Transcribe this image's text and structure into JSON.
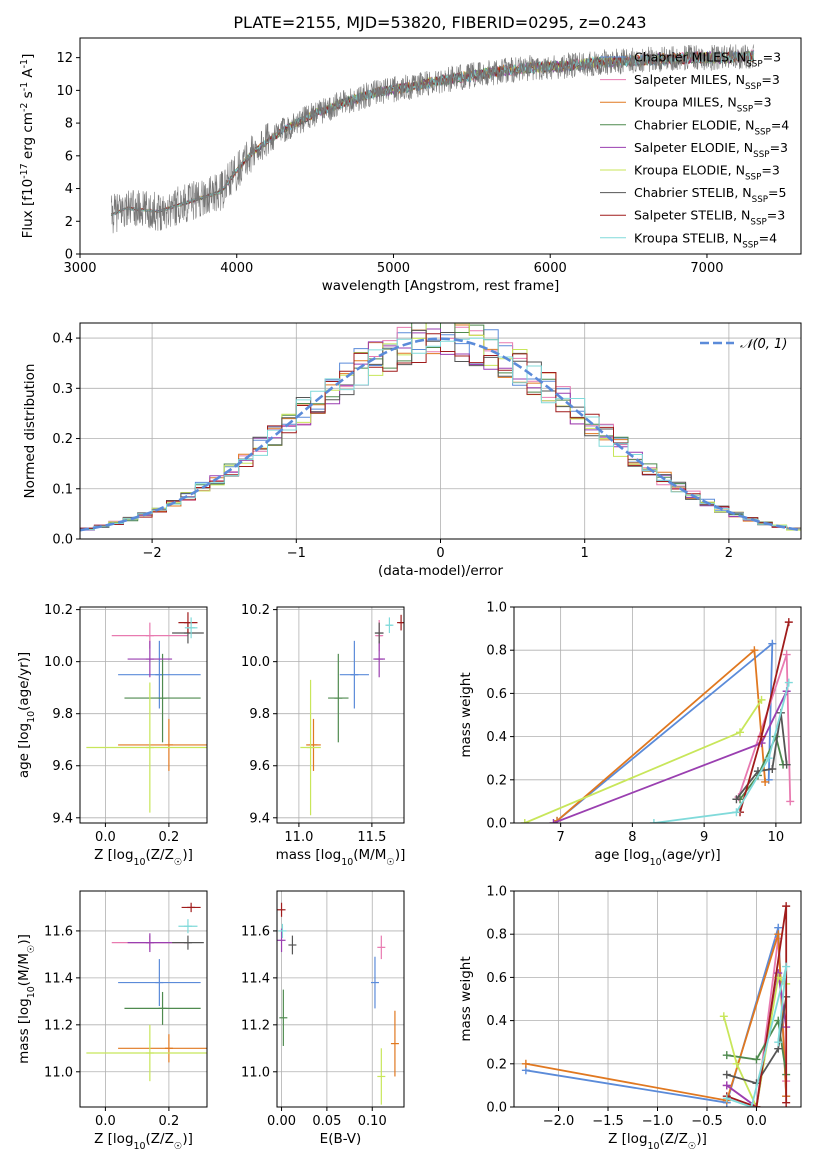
{
  "figure_title": "PLATE=2155, MJD=53820, FIBERID=0295, z=0.243",
  "colors": {
    "chabrier_miles": "#5b8bd9",
    "salpeter_miles": "#e87ab0",
    "kroupa_miles": "#e07820",
    "chabrier_elodie": "#4f8a4f",
    "salpeter_elodie": "#9a3fb0",
    "kroupa_elodie": "#c8e65a",
    "chabrier_stelib": "#555555",
    "salpeter_stelib": "#a01c1c",
    "kroupa_stelib": "#80dada",
    "gaussian": "#5b8bd9",
    "data_gray": "#777777"
  },
  "chart_data": [
    {
      "id": "spectrum",
      "type": "line",
      "xlabel": "wavelength [Angstrom, rest frame]",
      "ylabel": "Flux [f$_\\lambda$10$^{-17}$ erg cm$^{-2}$ s$^{-1}$ A$^{-1}$]",
      "xlim": [
        3000,
        7600
      ],
      "ylim": [
        0,
        13.2
      ],
      "xticks": [
        "3000",
        "4000",
        "5000",
        "6000",
        "7000"
      ],
      "yticks": [
        "0",
        "2",
        "4",
        "6",
        "8",
        "10",
        "12"
      ],
      "continuum": {
        "x": [
          3200,
          3300,
          3500,
          3700,
          3900,
          4000,
          4100,
          4300,
          4500,
          4700,
          4900,
          5100,
          5300,
          5500,
          5700,
          5900,
          6100,
          6300,
          6500,
          6700,
          6900,
          7100,
          7300
        ],
        "y": [
          2.4,
          2.8,
          2.6,
          3.2,
          3.8,
          5.1,
          6.2,
          7.6,
          8.6,
          9.3,
          9.9,
          10.2,
          10.6,
          10.9,
          11.2,
          11.4,
          11.5,
          11.7,
          11.8,
          11.9,
          12.0,
          12.0,
          12.1
        ]
      },
      "legend": [
        "Chabrier MILES, N$_{SSP}$=3",
        "Salpeter MILES, N$_{SSP}$=3",
        "Kroupa MILES, N$_{SSP}$=3",
        "Chabrier ELODIE, N$_{SSP}$=4",
        "Salpeter ELODIE, N$_{SSP}$=3",
        "Kroupa ELODIE, N$_{SSP}$=3",
        "Chabrier STELIB, N$_{SSP}$=5",
        "Salpeter STELIB, N$_{SSP}$=3",
        "Kroupa STELIB, N$_{SSP}$=4"
      ],
      "legend_placement": "upper right",
      "grid": false
    },
    {
      "id": "residuals",
      "type": "histogram",
      "xlabel": "(data-model)/error",
      "ylabel": "Normed distribution",
      "xlim": [
        -2.5,
        2.5
      ],
      "ylim": [
        0,
        0.43
      ],
      "xticks": [
        "−2",
        "−1",
        "0",
        "1",
        "2"
      ],
      "yticks": [
        "0.0",
        "0.1",
        "0.2",
        "0.3",
        "0.4"
      ],
      "legend": [
        "$\\mathcal{N}(0,1)$"
      ],
      "legend_placement": "upper right",
      "bin_width": 0.1,
      "grid": true
    },
    {
      "id": "age_vs_Z",
      "type": "errorbar",
      "xlabel": "Z [log$_{10}$(Z/Z$_\\odot$)]",
      "ylabel": "age  [log$_{10}$(age/yr)]",
      "xlim": [
        -0.08,
        0.32
      ],
      "ylim": [
        9.38,
        10.21
      ],
      "xticks": [
        "0.0",
        "0.2"
      ],
      "yticks": [
        "9.4",
        "9.6",
        "9.8",
        "10.0",
        "10.2"
      ],
      "points": [
        {
          "model": "chabrier_miles",
          "x": 0.17,
          "y": 9.95,
          "xerr": 0.13,
          "yerr": 0.13
        },
        {
          "model": "salpeter_miles",
          "x": 0.14,
          "y": 10.1,
          "xerr": 0.12,
          "yerr": 0.05
        },
        {
          "model": "kroupa_miles",
          "x": 0.2,
          "y": 9.68,
          "xerr": 0.16,
          "yerr": 0.1
        },
        {
          "model": "chabrier_elodie",
          "x": 0.18,
          "y": 9.86,
          "xerr": 0.12,
          "yerr": 0.17
        },
        {
          "model": "salpeter_elodie",
          "x": 0.14,
          "y": 10.01,
          "xerr": 0.07,
          "yerr": 0.07
        },
        {
          "model": "kroupa_elodie",
          "x": 0.14,
          "y": 9.67,
          "xerr": 0.2,
          "yerr": 0.25
        },
        {
          "model": "chabrier_stelib",
          "x": 0.26,
          "y": 10.11,
          "xerr": 0.05,
          "yerr": 0.04
        },
        {
          "model": "salpeter_stelib",
          "x": 0.26,
          "y": 10.15,
          "xerr": 0.03,
          "yerr": 0.04
        },
        {
          "model": "kroupa_stelib",
          "x": 0.27,
          "y": 10.13,
          "xerr": 0.02,
          "yerr": 0.04
        }
      ],
      "grid": true
    },
    {
      "id": "age_vs_mass",
      "type": "errorbar",
      "xlabel": "mass [log$_{10}$(M/M$_\\odot$)]",
      "ylabel": "",
      "xlim": [
        10.85,
        11.72
      ],
      "ylim": [
        9.38,
        10.21
      ],
      "xticks": [
        "11.0",
        "11.5"
      ],
      "yticks": [
        "9.4",
        "9.6",
        "9.8",
        "10.0",
        "10.2"
      ],
      "points": [
        {
          "model": "chabrier_miles",
          "x": 11.38,
          "y": 9.95,
          "xerr": 0.1,
          "yerr": 0.13
        },
        {
          "model": "salpeter_miles",
          "x": 11.55,
          "y": 10.1,
          "xerr": 0.02,
          "yerr": 0.06
        },
        {
          "model": "kroupa_miles",
          "x": 11.1,
          "y": 9.68,
          "xerr": 0.05,
          "yerr": 0.1
        },
        {
          "model": "chabrier_elodie",
          "x": 11.27,
          "y": 9.86,
          "xerr": 0.07,
          "yerr": 0.17
        },
        {
          "model": "salpeter_elodie",
          "x": 11.55,
          "y": 10.01,
          "xerr": 0.04,
          "yerr": 0.07
        },
        {
          "model": "kroupa_elodie",
          "x": 11.08,
          "y": 9.67,
          "xerr": 0.07,
          "yerr": 0.26
        },
        {
          "model": "chabrier_stelib",
          "x": 11.55,
          "y": 10.11,
          "xerr": 0.03,
          "yerr": 0.04
        },
        {
          "model": "salpeter_stelib",
          "x": 11.7,
          "y": 10.15,
          "xerr": 0.015,
          "yerr": 0.03
        },
        {
          "model": "kroupa_stelib",
          "x": 11.62,
          "y": 10.14,
          "xerr": 0.02,
          "yerr": 0.03
        }
      ],
      "grid": true
    },
    {
      "id": "weight_vs_age",
      "type": "line",
      "xlabel": "age  [log$_{10}$(age/yr)]",
      "ylabel": "mass weight",
      "xlim": [
        6.35,
        10.35
      ],
      "ylim": [
        0,
        1
      ],
      "xticks": [
        "7",
        "8",
        "9",
        "10"
      ],
      "yticks": [
        "0.0",
        "0.2",
        "0.4",
        "0.6",
        "0.8",
        "1.0"
      ],
      "series": [
        {
          "model": "chabrier_miles",
          "x": [
            6.95,
            9.95,
            9.9
          ],
          "y": [
            0.01,
            0.83,
            0.2
          ]
        },
        {
          "model": "salpeter_miles",
          "x": [
            9.48,
            10.15,
            10.2
          ],
          "y": [
            0.12,
            0.78,
            0.1
          ]
        },
        {
          "model": "kroupa_miles",
          "x": [
            6.95,
            9.7,
            9.85
          ],
          "y": [
            0.01,
            0.8,
            0.19
          ]
        },
        {
          "model": "chabrier_elodie",
          "x": [
            9.5,
            9.75,
            10.0,
            10.1
          ],
          "y": [
            0.11,
            0.22,
            0.4,
            0.27
          ]
        },
        {
          "model": "salpeter_elodie",
          "x": [
            6.9,
            9.8,
            10.15
          ],
          "y": [
            0.0,
            0.37,
            0.61
          ]
        },
        {
          "model": "kroupa_elodie",
          "x": [
            6.5,
            9.5,
            9.8
          ],
          "y": [
            0.0,
            0.42,
            0.57
          ]
        },
        {
          "model": "chabrier_stelib",
          "x": [
            9.45,
            9.75,
            9.95,
            10.07,
            10.15
          ],
          "y": [
            0.11,
            0.24,
            0.25,
            0.51,
            0.27
          ]
        },
        {
          "model": "salpeter_stelib",
          "x": [
            9.5,
            9.8,
            10.18
          ],
          "y": [
            0.05,
            0.4,
            0.93
          ]
        },
        {
          "model": "kroupa_stelib",
          "x": [
            8.3,
            9.45,
            9.9,
            10.18
          ],
          "y": [
            0.0,
            0.05,
            0.3,
            0.65
          ]
        }
      ],
      "grid": true
    },
    {
      "id": "mass_vs_Z",
      "type": "errorbar",
      "xlabel": "Z [log$_{10}$(Z/Z$_\\odot$)]",
      "ylabel": "mass [log$_{10}$(M/M$_\\odot$)]",
      "xlim": [
        -0.08,
        0.32
      ],
      "ylim": [
        10.85,
        11.77
      ],
      "xticks": [
        "0.0",
        "0.2"
      ],
      "yticks": [
        "11.0",
        "11.2",
        "11.4",
        "11.6"
      ],
      "points": [
        {
          "model": "chabrier_miles",
          "x": 0.17,
          "y": 11.38,
          "xerr": 0.13,
          "yerr": 0.1
        },
        {
          "model": "salpeter_miles",
          "x": 0.14,
          "y": 11.55,
          "xerr": 0.12,
          "yerr": 0.03
        },
        {
          "model": "kroupa_miles",
          "x": 0.2,
          "y": 11.1,
          "xerr": 0.16,
          "yerr": 0.06
        },
        {
          "model": "chabrier_elodie",
          "x": 0.18,
          "y": 11.27,
          "xerr": 0.12,
          "yerr": 0.07
        },
        {
          "model": "salpeter_elodie",
          "x": 0.14,
          "y": 11.55,
          "xerr": 0.07,
          "yerr": 0.04
        },
        {
          "model": "kroupa_elodie",
          "x": 0.14,
          "y": 11.08,
          "xerr": 0.2,
          "yerr": 0.12
        },
        {
          "model": "chabrier_stelib",
          "x": 0.26,
          "y": 11.55,
          "xerr": 0.05,
          "yerr": 0.03
        },
        {
          "model": "salpeter_stelib",
          "x": 0.27,
          "y": 11.7,
          "xerr": 0.03,
          "yerr": 0.02
        },
        {
          "model": "kroupa_stelib",
          "x": 0.26,
          "y": 11.62,
          "xerr": 0.03,
          "yerr": 0.03
        }
      ],
      "grid": true
    },
    {
      "id": "mass_vs_ebv",
      "type": "errorbar",
      "xlabel": "E(B-V)",
      "ylabel": "",
      "xlim": [
        -0.005,
        0.135
      ],
      "ylim": [
        10.85,
        11.77
      ],
      "xticks": [
        "0.00",
        "0.05",
        "0.10"
      ],
      "yticks": [
        "11.0",
        "11.2",
        "11.4",
        "11.6"
      ],
      "points": [
        {
          "model": "chabrier_miles",
          "x": 0.103,
          "y": 11.38,
          "xerr": 0,
          "yerr": 0.11
        },
        {
          "model": "salpeter_miles",
          "x": 0.11,
          "y": 11.53,
          "xerr": 0,
          "yerr": 0.05
        },
        {
          "model": "kroupa_miles",
          "x": 0.125,
          "y": 11.12,
          "xerr": 0,
          "yerr": 0.14
        },
        {
          "model": "chabrier_elodie",
          "x": 0.002,
          "y": 11.23,
          "xerr": 0,
          "yerr": 0.12
        },
        {
          "model": "salpeter_elodie",
          "x": 0.0,
          "y": 11.56,
          "xerr": 0,
          "yerr": 0.05
        },
        {
          "model": "kroupa_elodie",
          "x": 0.11,
          "y": 10.98,
          "xerr": 0,
          "yerr": 0.12
        },
        {
          "model": "chabrier_stelib",
          "x": 0.012,
          "y": 11.54,
          "xerr": 0,
          "yerr": 0.04
        },
        {
          "model": "salpeter_stelib",
          "x": 0.0,
          "y": 11.69,
          "xerr": 0,
          "yerr": 0.03
        },
        {
          "model": "kroupa_stelib",
          "x": 0.001,
          "y": 11.6,
          "xerr": 0,
          "yerr": 0.03
        }
      ],
      "grid": true
    },
    {
      "id": "weight_vs_Z",
      "type": "line",
      "xlabel": "Z [log$_{10}$(Z/Z$_\\odot$)]",
      "ylabel": "mass weight",
      "xlim": [
        -2.45,
        0.45
      ],
      "ylim": [
        0,
        1
      ],
      "xticks": [
        "−2.0",
        "−1.5",
        "−1.0",
        "−0.5",
        "0.0"
      ],
      "yticks": [
        "0.0",
        "0.2",
        "0.4",
        "0.6",
        "0.8",
        "1.0"
      ],
      "series": [
        {
          "model": "chabrier_miles",
          "x": [
            -2.33,
            -0.3,
            0.22,
            0.3
          ],
          "y": [
            0.17,
            0.02,
            0.83,
            0.05
          ]
        },
        {
          "model": "salpeter_miles",
          "x": [
            -0.3,
            0.0,
            0.22,
            0.3
          ],
          "y": [
            0.1,
            0.0,
            0.78,
            0.12
          ]
        },
        {
          "model": "kroupa_miles",
          "x": [
            -2.33,
            -0.3,
            0.22,
            0.3
          ],
          "y": [
            0.2,
            0.03,
            0.8,
            0.05
          ]
        },
        {
          "model": "chabrier_elodie",
          "x": [
            -0.3,
            0.0,
            0.22,
            0.3
          ],
          "y": [
            0.24,
            0.22,
            0.4,
            0.15
          ]
        },
        {
          "model": "salpeter_elodie",
          "x": [
            -0.3,
            0.0,
            0.22,
            0.3
          ],
          "y": [
            0.1,
            0.0,
            0.62,
            0.37
          ]
        },
        {
          "model": "kroupa_elodie",
          "x": [
            -0.33,
            -0.2,
            0.0,
            0.22,
            0.3
          ],
          "y": [
            0.42,
            0.2,
            0.0,
            0.6,
            0.57
          ]
        },
        {
          "model": "chabrier_stelib",
          "x": [
            -0.3,
            0.0,
            0.22,
            0.3
          ],
          "y": [
            0.15,
            0.11,
            0.27,
            0.51
          ]
        },
        {
          "model": "salpeter_stelib",
          "x": [
            -0.3,
            0.0,
            0.3,
            0.3
          ],
          "y": [
            0.05,
            0.0,
            0.93,
            0.02
          ]
        },
        {
          "model": "kroupa_stelib",
          "x": [
            -0.3,
            -0.05,
            0.3,
            0.22
          ],
          "y": [
            0.04,
            0.0,
            0.65,
            0.3
          ]
        }
      ],
      "grid": true
    }
  ]
}
